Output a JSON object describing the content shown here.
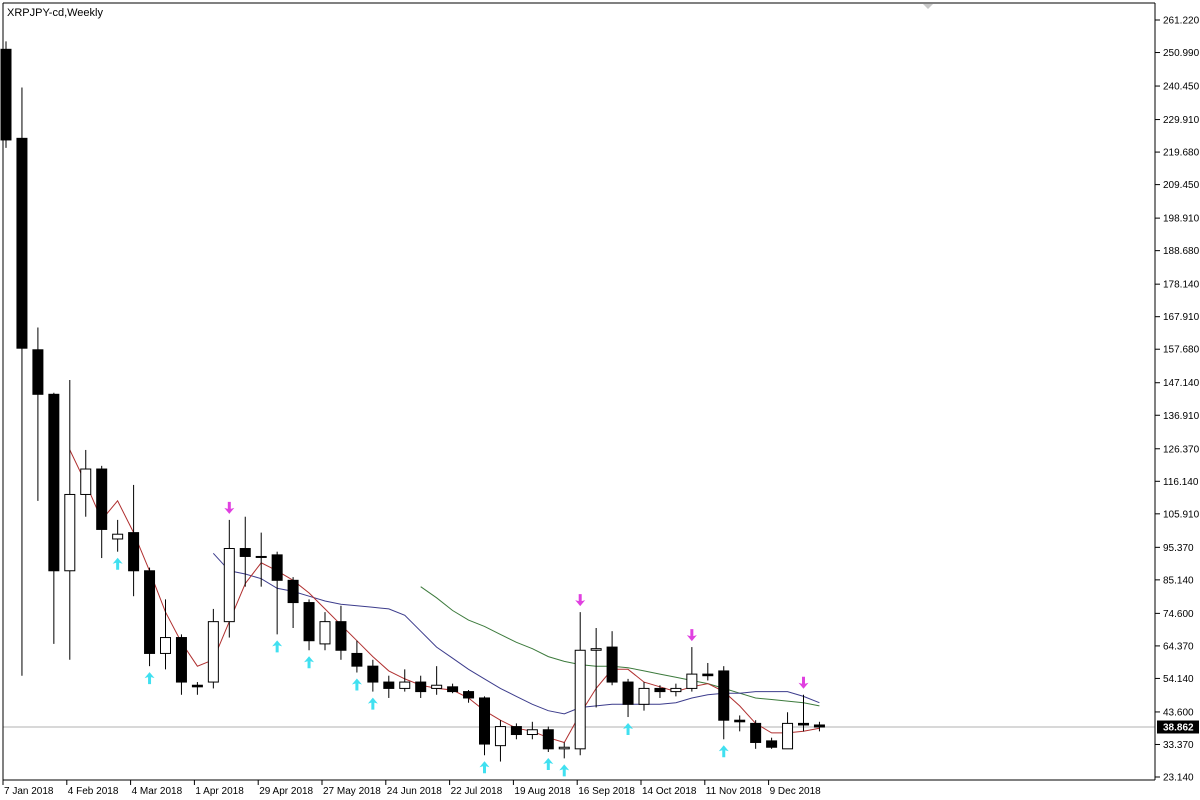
{
  "window": {
    "symbol_title": "XRPJPY-cd,Weekly"
  },
  "current_price_label": "38.862",
  "colors": {
    "background": "#ffffff",
    "candle_border": "#000000",
    "bear_fill": "#000000",
    "bull_fill": "#ffffff",
    "ma_fast": "#b03030",
    "ma_mid": "#3c3c8c",
    "ma_slow": "#3c7a3c",
    "fractal_up": "#e040e0",
    "fractal_down": "#40e0f0",
    "price_line": "#b0b0b0",
    "price_tag_bg": "#000000"
  },
  "chart_data": {
    "type": "candlestick",
    "title": "XRPJPY-cd,Weekly",
    "y_range": [
      23.14,
      261.22
    ],
    "y_ticks": [
      "261.220",
      "250.990",
      "240.450",
      "229.910",
      "219.680",
      "209.450",
      "198.910",
      "188.680",
      "178.140",
      "167.910",
      "157.680",
      "147.140",
      "136.910",
      "126.370",
      "116.140",
      "105.910",
      "95.370",
      "85.140",
      "74.600",
      "64.370",
      "54.140",
      "43.600",
      "33.370",
      "23.140"
    ],
    "x_tick_labels": [
      "7 Jan 2018",
      "4 Feb 2018",
      "4 Mar 2018",
      "1 Apr 2018",
      "29 Apr 2018",
      "27 May 2018",
      "24 Jun 2018",
      "22 Jul 2018",
      "19 Aug 2018",
      "16 Sep 2018",
      "14 Oct 2018",
      "11 Nov 2018",
      "9 Dec 2018"
    ],
    "x_tick_indices": [
      0,
      4,
      8,
      12,
      16,
      20,
      24,
      28,
      32,
      36,
      40,
      44,
      48
    ],
    "current_price": 38.862,
    "candles": [
      {
        "o": 252.0,
        "h": 254.5,
        "l": 221.0,
        "c": 223.5
      },
      {
        "o": 224.0,
        "h": 240.0,
        "l": 55.0,
        "c": 158.0
      },
      {
        "o": 157.5,
        "h": 164.5,
        "l": 110.0,
        "c": 143.5
      },
      {
        "o": 143.5,
        "h": 144.0,
        "l": 65.0,
        "c": 88.0
      },
      {
        "o": 88.0,
        "h": 148.0,
        "l": 60.0,
        "c": 112.0
      },
      {
        "o": 112.0,
        "h": 126.0,
        "l": 105.0,
        "c": 120.0
      },
      {
        "o": 120.0,
        "h": 121.0,
        "l": 92.0,
        "c": 101.0
      },
      {
        "o": 98.0,
        "h": 104.0,
        "l": 94.0,
        "c": 99.5
      },
      {
        "o": 100.0,
        "h": 115.0,
        "l": 80.0,
        "c": 88.0
      },
      {
        "o": 88.0,
        "h": 89.0,
        "l": 58.0,
        "c": 62.0
      },
      {
        "o": 62.0,
        "h": 79.0,
        "l": 57.0,
        "c": 67.0
      },
      {
        "o": 67.0,
        "h": 68.0,
        "l": 49.0,
        "c": 53.0
      },
      {
        "o": 52.0,
        "h": 53.0,
        "l": 49.0,
        "c": 51.5
      },
      {
        "o": 53.0,
        "h": 76.0,
        "l": 51.0,
        "c": 72.0
      },
      {
        "o": 72.0,
        "h": 104.0,
        "l": 67.0,
        "c": 95.0
      },
      {
        "o": 95.0,
        "h": 105.0,
        "l": 83.0,
        "c": 92.5
      },
      {
        "o": 92.5,
        "h": 100.0,
        "l": 83.0,
        "c": 92.5
      },
      {
        "o": 93.0,
        "h": 94.0,
        "l": 68.0,
        "c": 85.0
      },
      {
        "o": 85.0,
        "h": 86.0,
        "l": 70.0,
        "c": 78.0
      },
      {
        "o": 78.0,
        "h": 79.0,
        "l": 63.0,
        "c": 66.0
      },
      {
        "o": 65.0,
        "h": 75.0,
        "l": 63.0,
        "c": 72.0
      },
      {
        "o": 72.0,
        "h": 77.0,
        "l": 60.0,
        "c": 63.0
      },
      {
        "o": 62.0,
        "h": 66.0,
        "l": 56.0,
        "c": 58.0
      },
      {
        "o": 58.0,
        "h": 60.0,
        "l": 50.0,
        "c": 53.0
      },
      {
        "o": 53.0,
        "h": 55.0,
        "l": 48.0,
        "c": 51.0
      },
      {
        "o": 51.0,
        "h": 57.0,
        "l": 50.0,
        "c": 53.0
      },
      {
        "o": 53.0,
        "h": 55.0,
        "l": 48.0,
        "c": 50.0
      },
      {
        "o": 51.0,
        "h": 58.0,
        "l": 49.0,
        "c": 52.0
      },
      {
        "o": 51.5,
        "h": 52.5,
        "l": 49.5,
        "c": 50.0
      },
      {
        "o": 50.0,
        "h": 50.5,
        "l": 46.5,
        "c": 48.0
      },
      {
        "o": 48.0,
        "h": 48.5,
        "l": 30.0,
        "c": 33.5
      },
      {
        "o": 33.0,
        "h": 41.0,
        "l": 28.0,
        "c": 39.0
      },
      {
        "o": 39.0,
        "h": 40.0,
        "l": 35.0,
        "c": 36.5
      },
      {
        "o": 36.5,
        "h": 40.5,
        "l": 35.0,
        "c": 38.0
      },
      {
        "o": 38.0,
        "h": 39.0,
        "l": 31.0,
        "c": 32.0
      },
      {
        "o": 32.0,
        "h": 34.0,
        "l": 29.0,
        "c": 32.5
      },
      {
        "o": 32.0,
        "h": 75.0,
        "l": 30.0,
        "c": 63.0
      },
      {
        "o": 63.0,
        "h": 70.0,
        "l": 45.0,
        "c": 63.5
      },
      {
        "o": 64.0,
        "h": 69.0,
        "l": 52.0,
        "c": 53.0
      },
      {
        "o": 53.0,
        "h": 54.0,
        "l": 42.0,
        "c": 46.0
      },
      {
        "o": 46.0,
        "h": 53.0,
        "l": 44.0,
        "c": 51.0
      },
      {
        "o": 51.0,
        "h": 52.0,
        "l": 48.0,
        "c": 50.0
      },
      {
        "o": 50.0,
        "h": 52.5,
        "l": 48.5,
        "c": 51.0
      },
      {
        "o": 51.0,
        "h": 64.0,
        "l": 50.0,
        "c": 55.5
      },
      {
        "o": 55.5,
        "h": 59.0,
        "l": 53.5,
        "c": 55.0
      },
      {
        "o": 56.5,
        "h": 58.0,
        "l": 35.0,
        "c": 41.0
      },
      {
        "o": 41.0,
        "h": 42.5,
        "l": 37.5,
        "c": 40.5
      },
      {
        "o": 40.0,
        "h": 41.0,
        "l": 32.0,
        "c": 34.0
      },
      {
        "o": 34.5,
        "h": 35.5,
        "l": 32.0,
        "c": 32.5
      },
      {
        "o": 32.0,
        "h": 43.5,
        "l": 32.0,
        "c": 40.0
      },
      {
        "o": 40.0,
        "h": 49.0,
        "l": 37.5,
        "c": 39.5
      },
      {
        "o": 39.5,
        "h": 40.5,
        "l": 37.5,
        "c": 38.86
      }
    ],
    "ma_fast": [
      [
        4,
        126.0
      ],
      [
        5,
        115.5
      ],
      [
        6,
        104.0
      ],
      [
        7,
        110.0
      ],
      [
        8,
        100.0
      ],
      [
        9,
        88.0
      ],
      [
        10,
        75.0
      ],
      [
        11,
        65.5
      ],
      [
        12,
        58.0
      ],
      [
        13,
        60.0
      ],
      [
        14,
        72.0
      ],
      [
        15,
        84.0
      ],
      [
        16,
        90.5
      ],
      [
        17,
        88.0
      ],
      [
        18,
        85.0
      ],
      [
        19,
        81.0
      ],
      [
        20,
        76.0
      ],
      [
        21,
        71.0
      ],
      [
        22,
        66.0
      ],
      [
        23,
        61.0
      ],
      [
        24,
        56.5
      ],
      [
        25,
        54.0
      ],
      [
        26,
        52.0
      ],
      [
        27,
        51.0
      ],
      [
        28,
        50.5
      ],
      [
        29,
        48.0
      ],
      [
        30,
        44.0
      ],
      [
        31,
        41.0
      ],
      [
        32,
        38.5
      ],
      [
        33,
        37.5
      ],
      [
        34,
        35.5
      ],
      [
        35,
        34.0
      ],
      [
        36,
        43.0
      ],
      [
        37,
        51.0
      ],
      [
        38,
        57.0
      ],
      [
        39,
        57.0
      ],
      [
        40,
        53.0
      ],
      [
        41,
        51.5
      ],
      [
        42,
        50.0
      ],
      [
        43,
        51.5
      ],
      [
        44,
        52.5
      ],
      [
        45,
        50.0
      ],
      [
        46,
        45.5
      ],
      [
        47,
        40.0
      ],
      [
        48,
        37.0
      ],
      [
        49,
        37.0
      ],
      [
        50,
        37.5
      ],
      [
        51,
        38.5
      ]
    ],
    "ma_mid": [
      [
        13,
        93.5
      ],
      [
        14,
        88.0
      ],
      [
        15,
        87.0
      ],
      [
        16,
        85.5
      ],
      [
        17,
        82.5
      ],
      [
        18,
        81.5
      ],
      [
        19,
        80.0
      ],
      [
        20,
        78.5
      ],
      [
        21,
        77.5
      ],
      [
        22,
        77.0
      ],
      [
        23,
        76.5
      ],
      [
        24,
        76.0
      ],
      [
        25,
        74.0
      ],
      [
        26,
        69.0
      ],
      [
        27,
        64.0
      ],
      [
        28,
        60.5
      ],
      [
        29,
        57.0
      ],
      [
        30,
        54.0
      ],
      [
        31,
        51.0
      ],
      [
        32,
        48.5
      ],
      [
        33,
        46.0
      ],
      [
        34,
        44.0
      ],
      [
        35,
        43.0
      ],
      [
        36,
        45.0
      ],
      [
        37,
        45.5
      ],
      [
        38,
        46.0
      ],
      [
        39,
        46.0
      ],
      [
        40,
        46.0
      ],
      [
        41,
        46.0
      ],
      [
        42,
        46.5
      ],
      [
        43,
        48.0
      ],
      [
        44,
        49.0
      ],
      [
        45,
        49.5
      ],
      [
        46,
        49.5
      ],
      [
        47,
        50.0
      ],
      [
        48,
        50.0
      ],
      [
        49,
        50.0
      ],
      [
        50,
        48.5
      ],
      [
        51,
        46.5
      ]
    ],
    "ma_slow": [
      [
        26,
        83.0
      ],
      [
        27,
        79.5
      ],
      [
        28,
        75.5
      ],
      [
        29,
        72.5
      ],
      [
        30,
        70.5
      ],
      [
        31,
        68.0
      ],
      [
        32,
        65.5
      ],
      [
        33,
        63.5
      ],
      [
        34,
        61.0
      ],
      [
        35,
        59.5
      ],
      [
        36,
        58.5
      ],
      [
        37,
        58.0
      ],
      [
        38,
        58.0
      ],
      [
        39,
        57.5
      ],
      [
        40,
        56.5
      ],
      [
        41,
        55.5
      ],
      [
        42,
        54.5
      ],
      [
        43,
        53.5
      ],
      [
        44,
        52.5
      ],
      [
        45,
        51.0
      ],
      [
        46,
        49.5
      ],
      [
        47,
        48.0
      ],
      [
        48,
        47.5
      ],
      [
        49,
        47.0
      ],
      [
        50,
        46.5
      ],
      [
        51,
        45.5
      ]
    ],
    "fractals_up": [
      14,
      36,
      43,
      50
    ],
    "fractals_down": [
      7,
      9,
      17,
      19,
      22,
      23,
      30,
      34,
      35,
      39,
      45
    ]
  }
}
